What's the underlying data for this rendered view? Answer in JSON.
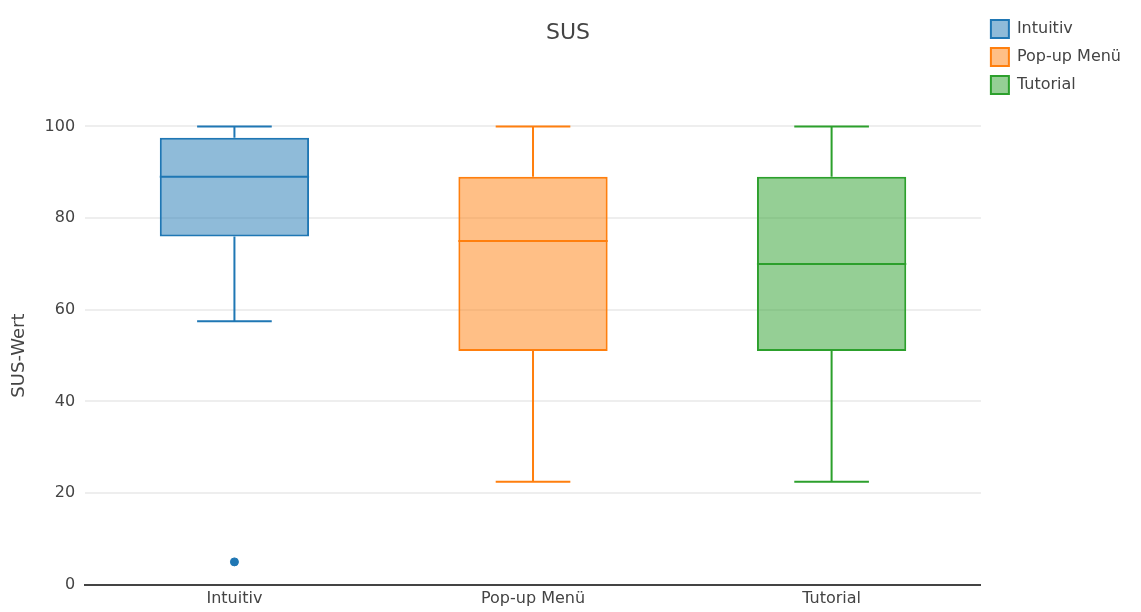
{
  "chart_data": {
    "type": "box",
    "title": "SUS",
    "ylabel": "SUS-Wert",
    "categories": [
      "Intuitiv",
      "Pop-up Menü",
      "Tutorial"
    ],
    "ylim": [
      0,
      100
    ],
    "yticks": [
      0,
      20,
      40,
      60,
      80,
      100
    ],
    "grid": "y",
    "legend": "top right",
    "series": [
      {
        "name": "Intuitiv",
        "color": "#1f77b4",
        "boxes": [
          {
            "low": 57.5,
            "q1": 76,
            "median": 89,
            "q3": 97.5,
            "high": 100,
            "outliers": [
              5
            ]
          },
          null,
          null
        ]
      },
      {
        "name": "Pop-up Menü",
        "color": "#ff7f0e",
        "boxes": [
          null,
          {
            "low": 22.5,
            "q1": 51,
            "median": 75,
            "q3": 89,
            "high": 100
          },
          null
        ]
      },
      {
        "name": "Tutorial",
        "color": "#2ca02c",
        "boxes": [
          null,
          null,
          {
            "low": 22.5,
            "q1": 51,
            "median": 70,
            "q3": 89,
            "high": 100
          }
        ]
      }
    ]
  }
}
